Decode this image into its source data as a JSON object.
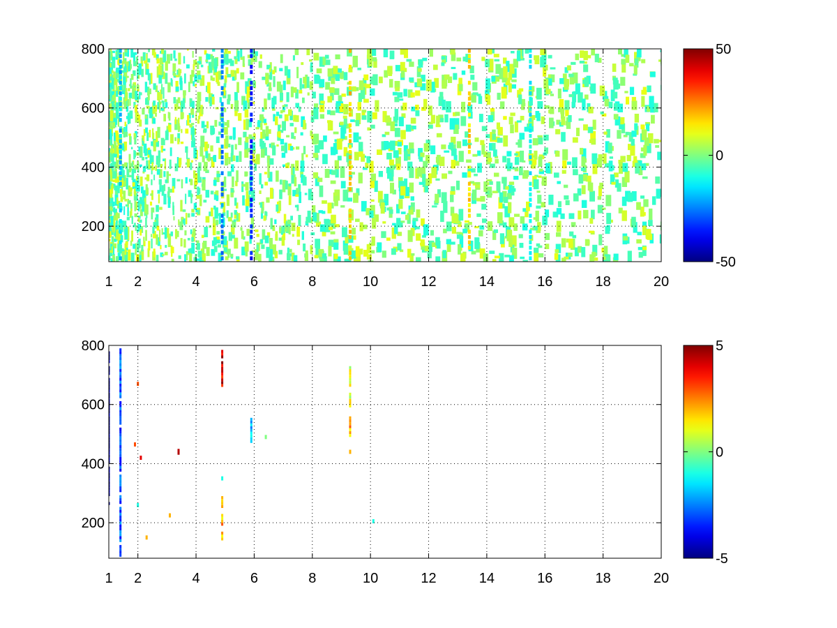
{
  "chart_data": [
    {
      "type": "heatmap",
      "title": "",
      "xlabel": "",
      "ylabel": "",
      "xlim": [
        1,
        20
      ],
      "ylim": [
        80,
        800
      ],
      "xticks": [
        1,
        2,
        4,
        6,
        8,
        10,
        12,
        14,
        16,
        18,
        20
      ],
      "xtick_labels": [
        "1",
        "2",
        "4",
        "6",
        "8",
        "10",
        "12",
        "14",
        "16",
        "18",
        "20"
      ],
      "yticks": [
        200,
        400,
        600,
        800
      ],
      "ytick_labels": [
        "200",
        "400",
        "600",
        "800"
      ],
      "grid": true,
      "colormap": "jet",
      "colorbar": {
        "range": [
          -50,
          50
        ],
        "ticks": [
          50,
          0,
          -50
        ],
        "tick_labels": [
          "50",
          "0",
          "-50"
        ]
      },
      "density": "dense scattered non-zero cells across the whole domain; very dense for x between 1 and 4, sparser toward x = 20; most values near 0 (green/cyan/yellow)",
      "highlight_columns": [
        {
          "x": 1.4,
          "value": -18
        },
        {
          "x": 4.9,
          "value": -25
        },
        {
          "x": 5.9,
          "value": -35
        },
        {
          "x": 9.3,
          "value": 18
        },
        {
          "x": 13.4,
          "value": 16
        },
        {
          "x": 15.5,
          "value": -12
        }
      ]
    },
    {
      "type": "heatmap",
      "title": "",
      "xlabel": "",
      "ylabel": "",
      "xlim": [
        1,
        20
      ],
      "ylim": [
        80,
        800
      ],
      "xticks": [
        1,
        2,
        4,
        6,
        8,
        10,
        12,
        14,
        16,
        18,
        20
      ],
      "xtick_labels": [
        "1",
        "2",
        "4",
        "6",
        "8",
        "10",
        "12",
        "14",
        "16",
        "18",
        "20"
      ],
      "yticks": [
        200,
        400,
        600,
        800
      ],
      "ytick_labels": [
        "200",
        "400",
        "600",
        "800"
      ],
      "grid": true,
      "colormap": "jet",
      "colorbar": {
        "range": [
          -5,
          5
        ],
        "ticks": [
          5,
          0,
          -5
        ],
        "tick_labels": [
          "5",
          "0",
          "-5"
        ]
      },
      "segments": [
        {
          "x": 1.0,
          "y0": 250,
          "y1": 780,
          "value": -5
        },
        {
          "x": 1.4,
          "y0": 85,
          "y1": 790,
          "value": -3
        },
        {
          "x": 4.9,
          "y0": 140,
          "y1": 290,
          "value": 2
        },
        {
          "x": 4.9,
          "y0": 650,
          "y1": 785,
          "value": 4
        },
        {
          "x": 5.9,
          "y0": 470,
          "y1": 555,
          "value": -2
        },
        {
          "x": 9.3,
          "y0": 480,
          "y1": 560,
          "value": 2
        },
        {
          "x": 9.3,
          "y0": 590,
          "y1": 730,
          "value": 1
        },
        {
          "x": 3.4,
          "y0": 430,
          "y1": 450,
          "value": 4
        }
      ],
      "points": [
        {
          "x": 2.0,
          "y": 260,
          "value": -1
        },
        {
          "x": 2.0,
          "y": 670,
          "value": 3
        },
        {
          "x": 2.1,
          "y": 420,
          "value": 4
        },
        {
          "x": 2.3,
          "y": 150,
          "value": 2
        },
        {
          "x": 3.1,
          "y": 225,
          "value": 2
        },
        {
          "x": 4.9,
          "y": 350,
          "value": -1
        },
        {
          "x": 6.4,
          "y": 490,
          "value": 0
        },
        {
          "x": 9.3,
          "y": 440,
          "value": 2
        },
        {
          "x": 10.1,
          "y": 205,
          "value": -1
        },
        {
          "x": 1.9,
          "y": 465,
          "value": 3
        }
      ]
    }
  ]
}
